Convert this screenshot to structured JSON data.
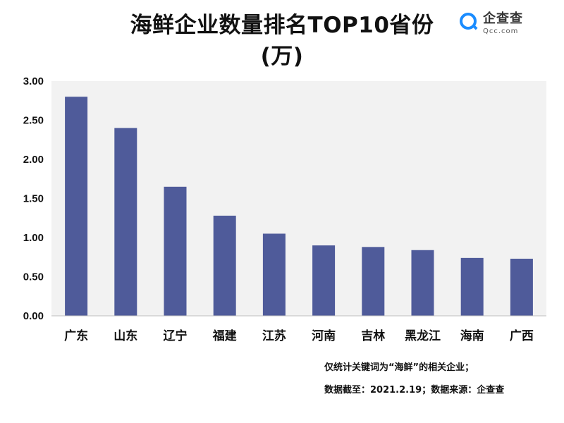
{
  "header": {
    "title_line1": "海鲜企业数量排名TOP10省份",
    "title_line2": "(万)"
  },
  "logo": {
    "name": "企查查",
    "subtext": "Qcc.com",
    "icon": "magnifier-icon",
    "color": "#1a8cff"
  },
  "footnotes": {
    "line1": "仅统计关键词为“海鲜”的相关企业；",
    "line2": "数据截至：2021.2.19；数据来源：企查查"
  },
  "chart_data": {
    "type": "bar",
    "title": "海鲜企业数量排名TOP10省份 (万)",
    "xlabel": "",
    "ylabel": "",
    "categories": [
      "广东",
      "山东",
      "辽宁",
      "福建",
      "江苏",
      "河南",
      "吉林",
      "黑龙江",
      "海南",
      "广西"
    ],
    "values": [
      2.8,
      2.4,
      1.65,
      1.28,
      1.05,
      0.9,
      0.88,
      0.84,
      0.74,
      0.73
    ],
    "ylim": [
      0,
      3.0
    ],
    "yticks": [
      "0.00",
      "0.50",
      "1.00",
      "1.50",
      "2.00",
      "2.50",
      "3.00"
    ],
    "grid": false,
    "legend": "none",
    "bar_color": "#4f5b9a",
    "plot_background": "#f2f2f2"
  }
}
